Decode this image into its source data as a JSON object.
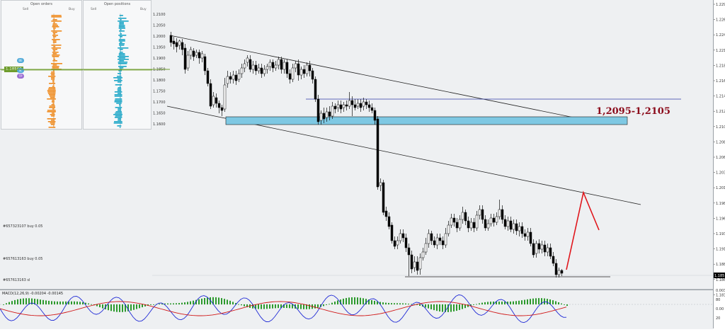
{
  "order_book": {
    "orders_title": "Open orders",
    "positions_title": "Open positions",
    "sell_label": "Sell",
    "buy_label": "Buy",
    "current_price": "1.18506",
    "price_labels": [
      "1.2100",
      "1.2050",
      "1.2000",
      "1.1950",
      "1.1900",
      "1.1850",
      "1.1800",
      "1.1750",
      "1.1700",
      "1.1650",
      "1.1600"
    ],
    "badges": [
      "BE",
      "SL",
      "TP"
    ]
  },
  "annotations": {
    "target_zone": "1,2095-1,2105"
  },
  "order_lines": [
    "#657323107 buy 0.05",
    "#657613163 buy 0.05",
    "#657613163 sl"
  ],
  "indicator": {
    "label": "MACD(12,26,9) -0.00204 -0.00145",
    "scale": [
      "0.003",
      "80",
      "0.00",
      "20"
    ]
  },
  "price_scale": [
    "1.229",
    "1.226",
    "1.224",
    "1.221",
    "1.218",
    "1.216",
    "1.214",
    "1.212",
    "1.210",
    "1.208",
    "1.206",
    "1.203",
    "1.201",
    "1.198",
    "1.196",
    "1.193",
    "1.191",
    "1.188",
    "1.186",
    "1.183"
  ],
  "current_price_tag": "1.185",
  "colors": {
    "bull_candle": "#ffffff",
    "bear_candle": "#000000",
    "zone_fill": "#7ec8e3",
    "target_text": "#8b0a1a",
    "projection": "#e0151b",
    "orders_sell": "#f08a1d",
    "positions": "#1aa6c7",
    "macd_hist": "#2c9a2c",
    "macd_line": "#1f2ad6",
    "signal_line": "#d01818"
  }
}
